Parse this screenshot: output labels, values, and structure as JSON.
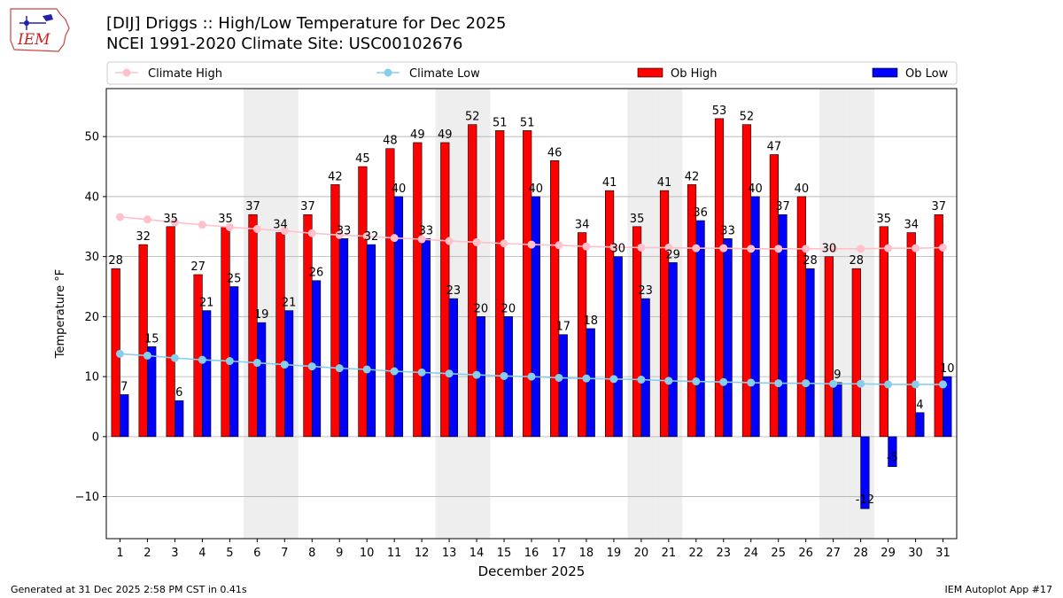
{
  "header": {
    "title_line1": "[DIJ] Driggs :: High/Low Temperature for Dec 2025",
    "title_line2": "NCEI 1991-2020 Climate Site: USC00102676",
    "logo_text": "IEM"
  },
  "footer": {
    "left": "Generated at 31 Dec 2025 2:58 PM CST in 0.41s",
    "right": "IEM Autoplot App #17"
  },
  "colors": {
    "ob_high": "#ff0000",
    "ob_low": "#0000ff",
    "climate_high": "#ffc0cb",
    "climate_low": "#87ceeb",
    "weekend_shade": "#eeeeee",
    "grid": "#b0b0b0"
  },
  "chart_data": {
    "type": "bar",
    "xlabel": "December 2025",
    "ylabel": "Temperature °F",
    "ylim": [
      -17,
      58
    ],
    "yticks": [
      -10,
      0,
      10,
      20,
      30,
      40,
      50
    ],
    "grid": "horizontal",
    "legend_location": "top, above plot",
    "categories": [
      "1",
      "2",
      "3",
      "4",
      "5",
      "6",
      "7",
      "8",
      "9",
      "10",
      "11",
      "12",
      "13",
      "14",
      "15",
      "16",
      "17",
      "18",
      "19",
      "20",
      "21",
      "22",
      "23",
      "24",
      "25",
      "26",
      "27",
      "28",
      "29",
      "30",
      "31"
    ],
    "shaded_days": [
      6,
      7,
      13,
      14,
      20,
      21,
      27,
      28
    ],
    "series": [
      {
        "name": "Ob High",
        "kind": "bar",
        "values": [
          28,
          32,
          35,
          27,
          35,
          37,
          34,
          37,
          42,
          45,
          48,
          49,
          49,
          52,
          51,
          51,
          46,
          34,
          41,
          35,
          41,
          42,
          53,
          52,
          47,
          40,
          30,
          28,
          35,
          34,
          37
        ]
      },
      {
        "name": "Ob Low",
        "kind": "bar",
        "values": [
          7,
          15,
          6,
          21,
          25,
          19,
          21,
          26,
          33,
          32,
          40,
          33,
          23,
          20,
          20,
          40,
          17,
          18,
          30,
          23,
          29,
          36,
          33,
          40,
          37,
          28,
          9,
          -12,
          -5,
          4,
          10
        ]
      },
      {
        "name": "Climate High",
        "kind": "line",
        "values": [
          36.6,
          36.2,
          35.7,
          35.3,
          34.9,
          34.6,
          34.3,
          33.9,
          33.6,
          33.4,
          33.1,
          32.9,
          32.6,
          32.4,
          32.2,
          32.0,
          31.9,
          31.7,
          31.6,
          31.5,
          31.5,
          31.4,
          31.4,
          31.3,
          31.3,
          31.3,
          31.3,
          31.3,
          31.4,
          31.4,
          31.5
        ]
      },
      {
        "name": "Climate Low",
        "kind": "line",
        "values": [
          13.8,
          13.5,
          13.1,
          12.8,
          12.6,
          12.3,
          12.0,
          11.7,
          11.4,
          11.2,
          10.9,
          10.7,
          10.5,
          10.3,
          10.1,
          10.0,
          9.8,
          9.7,
          9.6,
          9.5,
          9.3,
          9.2,
          9.1,
          9.0,
          8.9,
          8.9,
          8.8,
          8.8,
          8.7,
          8.7,
          8.7
        ]
      }
    ],
    "legend": [
      "Climate High",
      "Climate Low",
      "Ob High",
      "Ob Low"
    ]
  }
}
